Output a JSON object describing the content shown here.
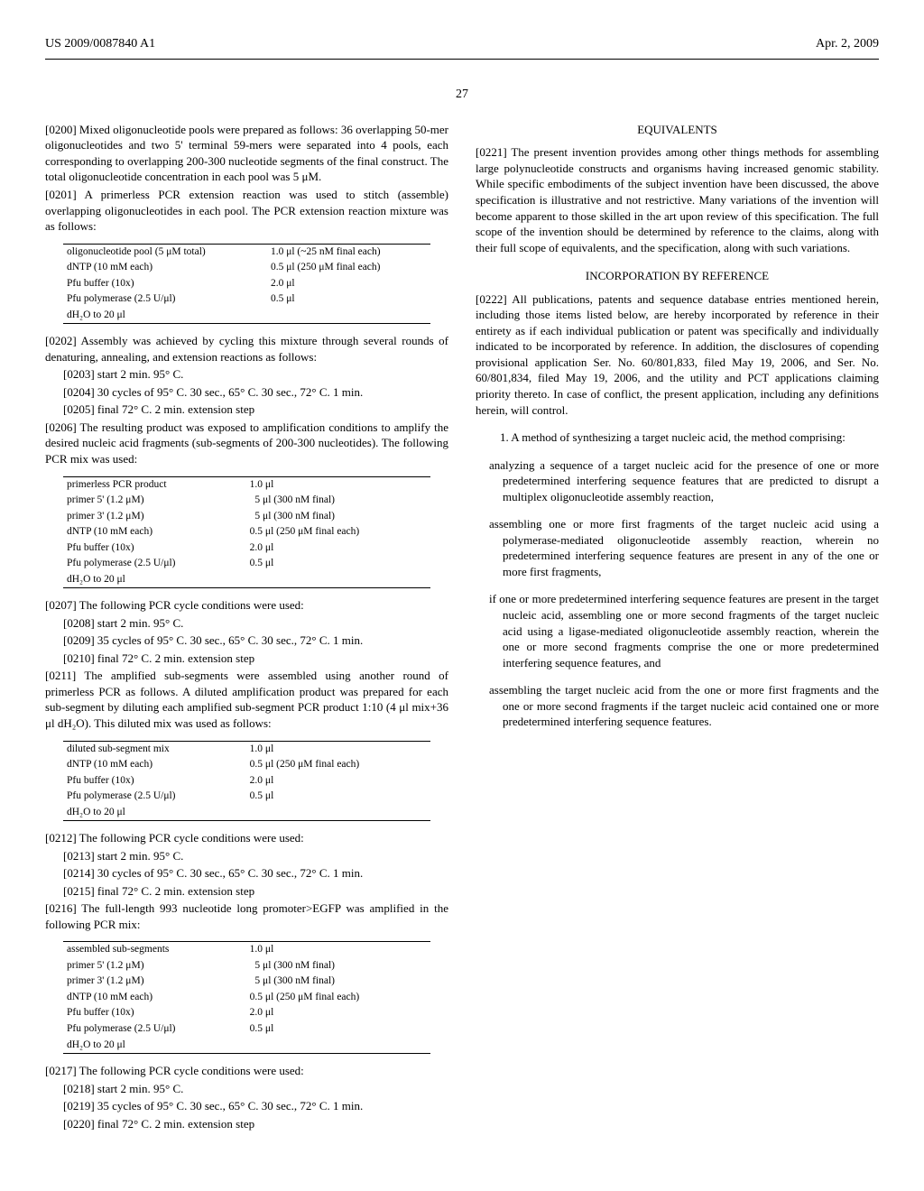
{
  "header": {
    "pub_number": "US 2009/0087840 A1",
    "date": "Apr. 2, 2009",
    "page_number": "27"
  },
  "p0200": "[0200]   Mixed oligonucleotide pools were prepared as follows: 36 overlapping 50-mer oligonucleotides and two 5' terminal 59-mers were separated into 4 pools, each corresponding to overlapping 200-300 nucleotide segments of the final construct. The total oligonucleotide concentration in each pool was 5 μM.",
  "p0201": "[0201]   A primerless PCR extension reaction was used to stitch (assemble) overlapping oligonucleotides in each pool. The PCR extension reaction mixture was as follows:",
  "table1": {
    "rows": [
      [
        "oligonucleotide pool (5 μM total)",
        "1.0 μl (~25 nM final each)"
      ],
      [
        "dNTP (10 mM each)",
        "0.5 μl (250 μM final each)"
      ],
      [
        "Pfu buffer (10x)",
        "2.0 μl"
      ],
      [
        "Pfu polymerase (2.5 U/μl)",
        "0.5 μl"
      ],
      [
        "dH₂O to 20 μl",
        ""
      ]
    ]
  },
  "p0202": "[0202]   Assembly was achieved by cycling this mixture through several rounds of denaturing, annealing, and extension reactions as follows:",
  "p0203": "[0203]   start 2 min. 95° C.",
  "p0204": "[0204]   30 cycles of 95° C. 30 sec., 65° C. 30 sec., 72° C. 1 min.",
  "p0205": "[0205]   final 72° C. 2 min. extension step",
  "p0206": "[0206]   The resulting product was exposed to amplification conditions to amplify the desired nucleic acid fragments (sub-segments of 200-300 nucleotides). The following PCR mix was used:",
  "table2": {
    "rows": [
      [
        "primerless PCR product",
        "1.0 μl"
      ],
      [
        "primer 5' (1.2 μM)",
        "  5 μl (300 nM final)"
      ],
      [
        "primer 3' (1.2 μM)",
        "  5 μl (300 nM final)"
      ],
      [
        "dNTP (10 mM each)",
        "0.5 μl (250 μM final each)"
      ],
      [
        "Pfu buffer (10x)",
        "2.0 μl"
      ],
      [
        "Pfu polymerase (2.5 U/μl)",
        "0.5 μl"
      ],
      [
        "dH₂O to 20 μl",
        ""
      ]
    ]
  },
  "p0207": "[0207]   The following PCR cycle conditions were used:",
  "p0208": "[0208]   start 2 min. 95° C.",
  "p0209": "[0209]   35 cycles of 95° C. 30 sec., 65° C. 30 sec., 72° C. 1 min.",
  "p0210": "[0210]   final 72° C. 2 min. extension step",
  "p0211": "[0211]   The amplified sub-segments were assembled using another round of primerless PCR as follows. A diluted amplification product was prepared for each sub-segment by diluting each amplified sub-segment PCR product 1:10 (4 μl mix+36 μl dH₂O). This diluted mix was used as follows:",
  "table3": {
    "rows": [
      [
        "diluted sub-segment mix",
        "1.0 μl"
      ],
      [
        "dNTP (10 mM each)",
        "0.5 μl (250 μM final each)"
      ],
      [
        "Pfu buffer (10x)",
        "2.0 μl"
      ],
      [
        "Pfu polymerase (2.5 U/μl)",
        "0.5 μl"
      ],
      [
        "dH₂O to 20 μl",
        ""
      ]
    ]
  },
  "p0212": "[0212]   The following PCR cycle conditions were used:",
  "p0213": "[0213]   start 2 min. 95° C.",
  "p0214": "[0214]   30 cycles of 95° C. 30 sec., 65° C. 30 sec., 72° C. 1 min.",
  "p0215": "[0215]   final 72° C. 2 min. extension step",
  "p0216": "[0216]   The    full-length    993    nucleotide    long promoter>EGFP was amplified in the following PCR mix:",
  "table4": {
    "rows": [
      [
        "assembled sub-segments",
        "1.0 μl"
      ],
      [
        "primer 5' (1.2 μM)",
        "  5 μl (300 nM final)"
      ],
      [
        "primer 3' (1.2 μM)",
        "  5 μl (300 nM final)"
      ],
      [
        "dNTP (10 mM each)",
        "0.5 μl (250 μM final each)"
      ],
      [
        "Pfu buffer (10x)",
        "2.0 μl"
      ],
      [
        "Pfu polymerase (2.5 U/μl)",
        "0.5 μl"
      ],
      [
        "dH₂O to 20 μl",
        ""
      ]
    ]
  },
  "p0217": "[0217]   The following PCR cycle conditions were used:",
  "p0218": "[0218]   start 2 min. 95° C.",
  "p0219": "[0219]   35 cycles of 95° C. 30 sec., 65° C. 30 sec., 72° C. 1 min.",
  "p0220": "[0220]   final 72° C. 2 min. extension step",
  "equivalents_head": "EQUIVALENTS",
  "p0221": "[0221]   The present invention provides among other things methods for assembling large polynucleotide constructs and organisms having increased genomic stability. While specific embodiments of the subject invention have been discussed, the above specification is illustrative and not restrictive. Many variations of the invention will become apparent to those skilled in the art upon review of this specification. The full scope of the invention should be determined by reference to the claims, along with their full scope of equivalents, and the specification, along with such variations.",
  "incorp_head": "INCORPORATION BY REFERENCE",
  "p0222": "[0222]   All publications, patents and sequence database entries mentioned herein, including those items listed below, are hereby incorporated by reference in their entirety as if each individual publication or patent was specifically and individually indicated to be incorporated by reference. In addition, the disclosures of copending provisional application Ser. No. 60/801,833, filed May 19, 2006, and Ser. No. 60/801,834, filed May 19, 2006, and the utility and PCT applications claiming priority thereto. In case of conflict, the present application, including any definitions herein, will control.",
  "claim1_intro": "1. A method of synthesizing a target nucleic acid, the method comprising:",
  "claim1_a": "analyzing a sequence of a target nucleic acid for the presence of one or more predetermined interfering sequence features that are predicted to disrupt a multiplex oligonucleotide assembly reaction,",
  "claim1_b": "assembling one or more first fragments of the target nucleic acid using a polymerase-mediated oligonucleotide assembly reaction, wherein no predetermined interfering sequence features are present in any of the one or more first fragments,",
  "claim1_c": "if one or more predetermined interfering sequence features are present in the target nucleic acid, assembling one or more second fragments of the target nucleic acid using a ligase-mediated oligonucleotide assembly reaction, wherein the one or more second fragments comprise the one or more predetermined interfering sequence features, and",
  "claim1_d": "assembling the target nucleic acid from the one or more first fragments and the one or more second fragments if the target nucleic acid contained one or more predetermined interfering sequence features."
}
